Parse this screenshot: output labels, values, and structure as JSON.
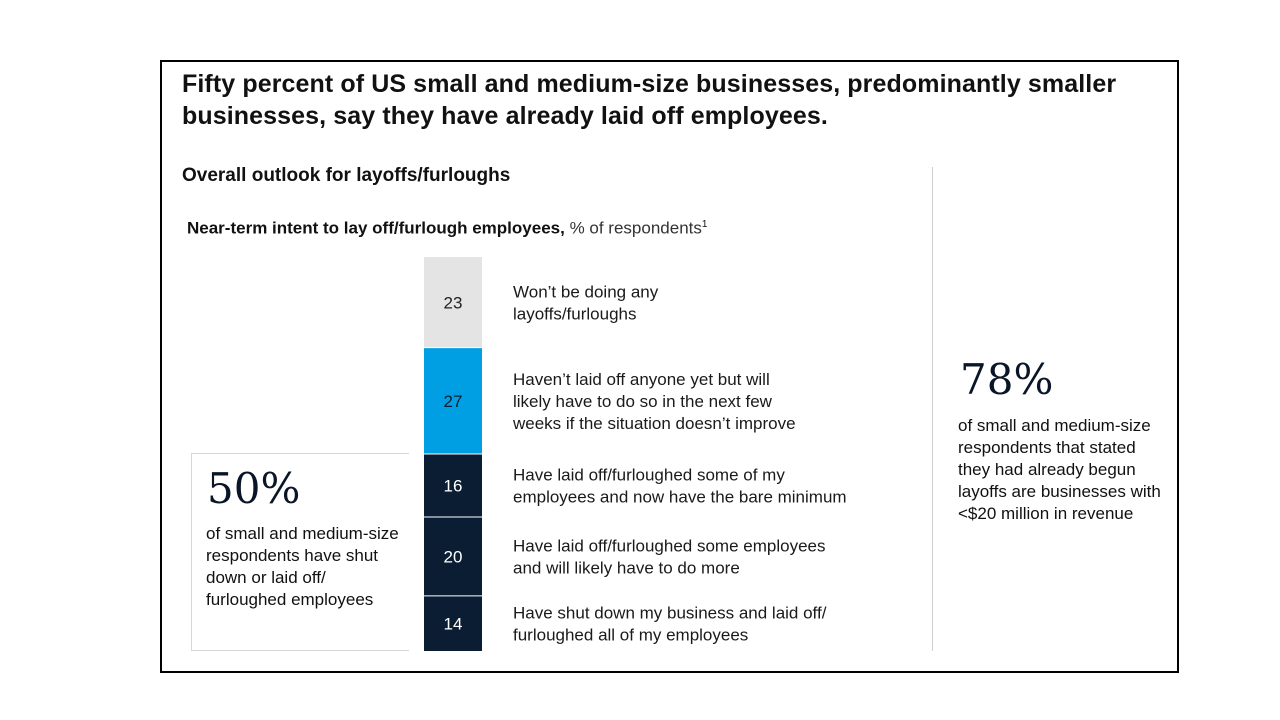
{
  "title": "Fifty percent of US small and medium-size businesses, predominantly smaller businesses, say they have already laid off employees.",
  "subtitle": "Overall outlook for layoffs/furloughs",
  "chart_heading": {
    "bold": "Near-term intent to lay off/furlough employees,",
    "unit": "% of respondents",
    "footnote": "1"
  },
  "colors": {
    "light_gray": "#e4e4e4",
    "bright_blue": "#009fe3",
    "navy": "#0b1d33"
  },
  "callout_left": {
    "number": "50%",
    "text": "of small and medium-size respondents have shut down or laid off/ furloughed employees"
  },
  "callout_right": {
    "number": "78%",
    "text": "of small and medium-size respondents that stated they had already begun layoffs are businesses with <$20 million in revenue"
  },
  "chart_data": {
    "type": "bar",
    "orientation": "stacked-vertical",
    "title": "Near-term intent to lay off/furlough employees",
    "ylabel": "% of respondents",
    "total": 100,
    "segments": [
      {
        "value": 23,
        "label": "23",
        "color": "#e4e4e4",
        "text_color": "#222222",
        "category": [
          "Won’t be doing any",
          "layoffs/furloughs"
        ]
      },
      {
        "value": 27,
        "label": "27",
        "color": "#009fe3",
        "text_color": "#0b1d33",
        "category": [
          "Haven’t laid off anyone yet but will",
          "likely have to do so in the next few",
          "weeks if the situation doesn’t improve"
        ]
      },
      {
        "value": 16,
        "label": "16",
        "color": "#0b1d33",
        "text_color": "#ffffff",
        "category": [
          "Have laid off/furloughed some of my",
          "employees and now have the bare minimum"
        ]
      },
      {
        "value": 20,
        "label": "20",
        "color": "#0b1d33",
        "text_color": "#ffffff",
        "category": [
          "Have laid off/furloughed some employees",
          "and will likely have to do more"
        ]
      },
      {
        "value": 14,
        "label": "14",
        "color": "#0b1d33",
        "text_color": "#ffffff",
        "category": [
          "Have shut down my business and laid off/",
          "furloughed all of my employees"
        ]
      }
    ]
  }
}
